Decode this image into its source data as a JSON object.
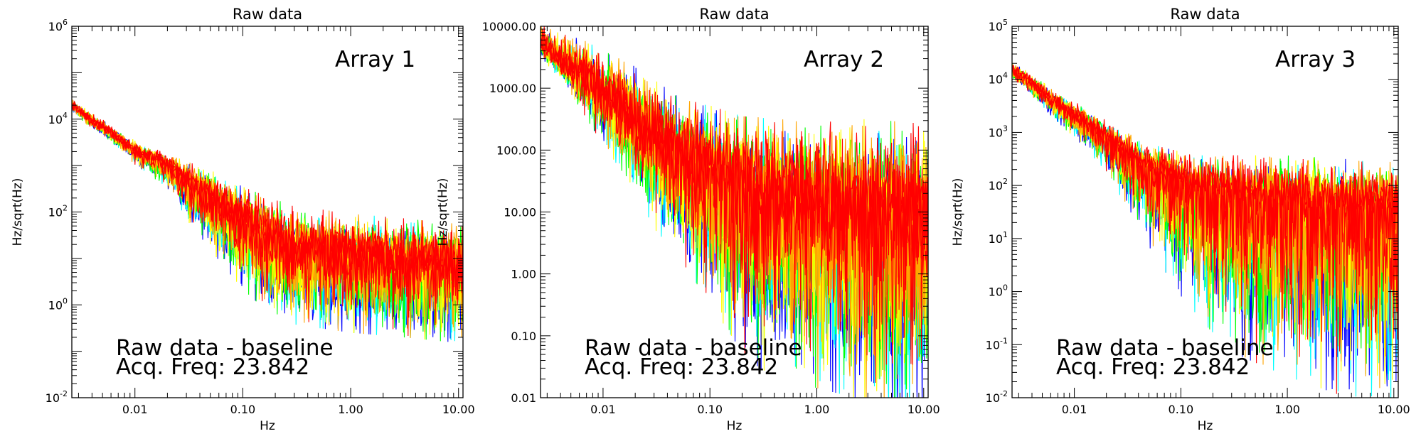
{
  "chart_data": [
    {
      "type": "line",
      "title": "Raw data",
      "xlabel": "Hz",
      "ylabel": "Hz/sqrt(Hz)",
      "x_scale": "log",
      "y_scale": "log",
      "xlim": [
        0.0026,
        11
      ],
      "ylim": [
        0.01,
        1000000
      ],
      "x_ticks": [
        0.01,
        0.1,
        1,
        10
      ],
      "x_tick_labels": [
        "0.01",
        "0.10",
        "1.00",
        "10.00"
      ],
      "y_ticks": [
        0.01,
        1,
        100,
        10000,
        1000000
      ],
      "y_tick_labels": [
        {
          "base": "10",
          "exp": "-2"
        },
        {
          "base": "10",
          "exp": "0"
        },
        {
          "base": "10",
          "exp": "2"
        },
        {
          "base": "10",
          "exp": "4"
        },
        {
          "base": "10",
          "exp": "6"
        }
      ],
      "array_label": "Array 1",
      "annotation_lines": [
        "Raw data - baseline",
        "Acq. Freq: 23.842"
      ],
      "series_colors": [
        "#0000ff",
        "#00ffff",
        "#00ff00",
        "#ffff00",
        "#ffa500",
        "#ff0000"
      ],
      "envelope": {
        "x": [
          0.0026,
          0.004,
          0.006,
          0.01,
          0.02,
          0.03,
          0.05,
          0.1,
          0.2,
          0.3,
          1,
          3,
          10
        ],
        "y_center": [
          20000,
          9000,
          5000,
          2000,
          1000,
          400,
          200,
          60,
          20,
          15,
          10,
          8,
          6
        ],
        "y_spread_up": [
          1.2,
          1.3,
          1.3,
          1.4,
          1.5,
          2,
          2.5,
          3,
          4,
          4,
          4,
          4,
          4
        ],
        "y_spread_down": [
          1.2,
          1.3,
          1.3,
          1.5,
          2,
          3,
          5,
          8,
          10,
          10,
          10,
          10,
          10
        ]
      }
    },
    {
      "type": "line",
      "title": "Raw data",
      "xlabel": "Hz",
      "ylabel": "Hz/sqrt(Hz)",
      "x_scale": "log",
      "y_scale": "log",
      "xlim": [
        0.0026,
        11
      ],
      "ylim": [
        0.01,
        10000
      ],
      "x_ticks": [
        0.01,
        0.1,
        1,
        10
      ],
      "x_tick_labels": [
        "0.01",
        "0.10",
        "1.00",
        "10.00"
      ],
      "y_ticks": [
        0.01,
        0.1,
        1,
        10,
        100,
        1000,
        10000
      ],
      "y_tick_labels": [
        {
          "base": "0.01",
          "exp": ""
        },
        {
          "base": "0.10",
          "exp": ""
        },
        {
          "base": "1.00",
          "exp": ""
        },
        {
          "base": "10.00",
          "exp": ""
        },
        {
          "base": "100.00",
          "exp": ""
        },
        {
          "base": "1000.00",
          "exp": ""
        },
        {
          "base": "10000.00",
          "exp": ""
        }
      ],
      "array_label": "Array 2",
      "annotation_lines": [
        "Raw data - baseline",
        "Acq. Freq: 23.842"
      ],
      "series_colors": [
        "#0000ff",
        "#00ffff",
        "#00ff00",
        "#ffff00",
        "#ffa500",
        "#ff0000"
      ],
      "envelope": {
        "x": [
          0.0026,
          0.004,
          0.006,
          0.01,
          0.02,
          0.03,
          0.05,
          0.1,
          0.2,
          0.3,
          1,
          3,
          10
        ],
        "y_center": [
          5000,
          2500,
          1500,
          700,
          300,
          150,
          80,
          40,
          20,
          15,
          10,
          8,
          5
        ],
        "y_spread_up": [
          1.6,
          2,
          2.5,
          3,
          3.5,
          4,
          4,
          5,
          6,
          7,
          8,
          10,
          12
        ],
        "y_spread_down": [
          1.3,
          1.5,
          2,
          3,
          5,
          8,
          10,
          20,
          40,
          50,
          60,
          70,
          80
        ]
      }
    },
    {
      "type": "line",
      "title": "Raw data",
      "xlabel": "Hz",
      "ylabel": "Hz/sqrt(Hz)",
      "x_scale": "log",
      "y_scale": "log",
      "xlim": [
        0.0026,
        11
      ],
      "ylim": [
        0.01,
        100000
      ],
      "x_ticks": [
        0.01,
        0.1,
        1,
        10
      ],
      "x_tick_labels": [
        "0.01",
        "0.10",
        "1.00",
        "10.00"
      ],
      "y_ticks": [
        0.01,
        0.1,
        1,
        10,
        100,
        1000,
        10000,
        100000
      ],
      "y_tick_labels": [
        {
          "base": "10",
          "exp": "-2"
        },
        {
          "base": "10",
          "exp": "-1"
        },
        {
          "base": "10",
          "exp": "0"
        },
        {
          "base": "10",
          "exp": "1"
        },
        {
          "base": "10",
          "exp": "2"
        },
        {
          "base": "10",
          "exp": "3"
        },
        {
          "base": "10",
          "exp": "4"
        },
        {
          "base": "10",
          "exp": "5"
        }
      ],
      "array_label": "Array 3",
      "annotation_lines": [
        "Raw data - baseline",
        "Acq. Freq: 23.842"
      ],
      "series_colors": [
        "#0000ff",
        "#00ffff",
        "#00ff00",
        "#ffff00",
        "#ffa500",
        "#ff0000"
      ],
      "envelope": {
        "x": [
          0.0026,
          0.004,
          0.006,
          0.01,
          0.02,
          0.03,
          0.05,
          0.1,
          0.2,
          0.3,
          1,
          3,
          10
        ],
        "y_center": [
          15000,
          8000,
          4000,
          2000,
          800,
          400,
          200,
          100,
          60,
          50,
          40,
          35,
          30
        ],
        "y_spread_up": [
          1.3,
          1.3,
          1.4,
          1.5,
          1.6,
          1.8,
          2,
          2.5,
          3,
          3.5,
          4,
          4,
          4
        ],
        "y_spread_down": [
          1.3,
          1.4,
          1.5,
          1.8,
          2.5,
          4,
          8,
          20,
          40,
          60,
          100,
          150,
          200
        ]
      }
    }
  ]
}
